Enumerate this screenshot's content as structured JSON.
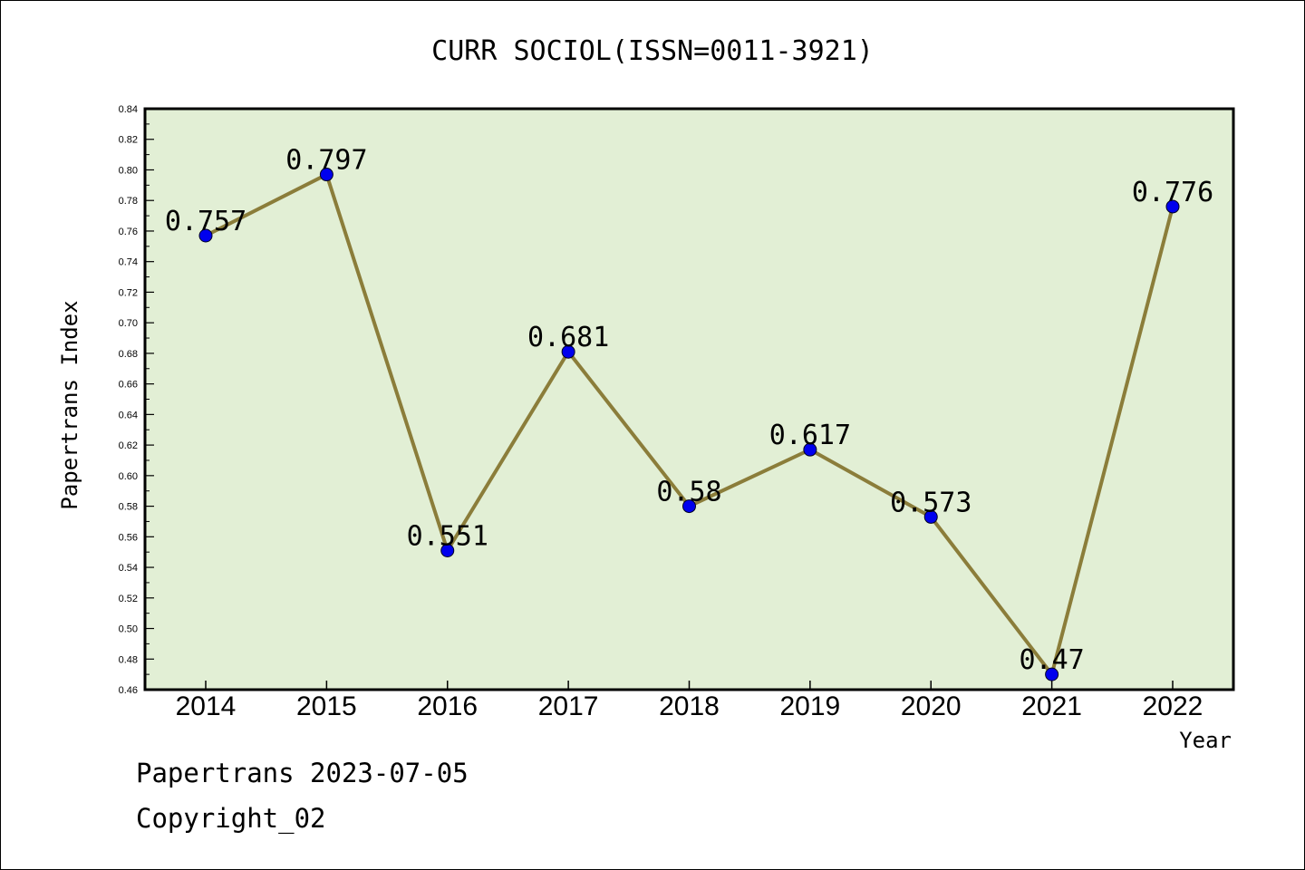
{
  "chart_data": {
    "type": "line",
    "title": "CURR SOCIOL(ISSN=0011-3921)",
    "xlabel": "Year",
    "ylabel": "Papertrans Index",
    "categories": [
      "2014",
      "2015",
      "2016",
      "2017",
      "2018",
      "2019",
      "2020",
      "2021",
      "2022"
    ],
    "series": [
      {
        "values": [
          0.757,
          0.797,
          0.551,
          0.681,
          0.58,
          0.617,
          0.573,
          0.47,
          0.776
        ],
        "labels": [
          "0.757",
          "0.797",
          "0.551",
          "0.681",
          "0.58",
          "0.617",
          "0.573",
          "0.47",
          "0.776"
        ]
      }
    ],
    "ylim": [
      0.46,
      0.84
    ],
    "yticks": [
      "0.46",
      "0.48",
      "0.50",
      "0.52",
      "0.54",
      "0.56",
      "0.58",
      "0.60",
      "0.62",
      "0.64",
      "0.66",
      "0.68",
      "0.70",
      "0.72",
      "0.74",
      "0.76",
      "0.78",
      "0.80",
      "0.82",
      "0.84"
    ],
    "grid": false,
    "legend": "none",
    "colors": {
      "plot_background": "#e2efd5",
      "line": "#8b7d3a",
      "marker": "#0000ee",
      "axis": "#000000"
    }
  },
  "footer": {
    "line1": "Papertrans 2023-07-05",
    "line2": "Copyright_02"
  }
}
